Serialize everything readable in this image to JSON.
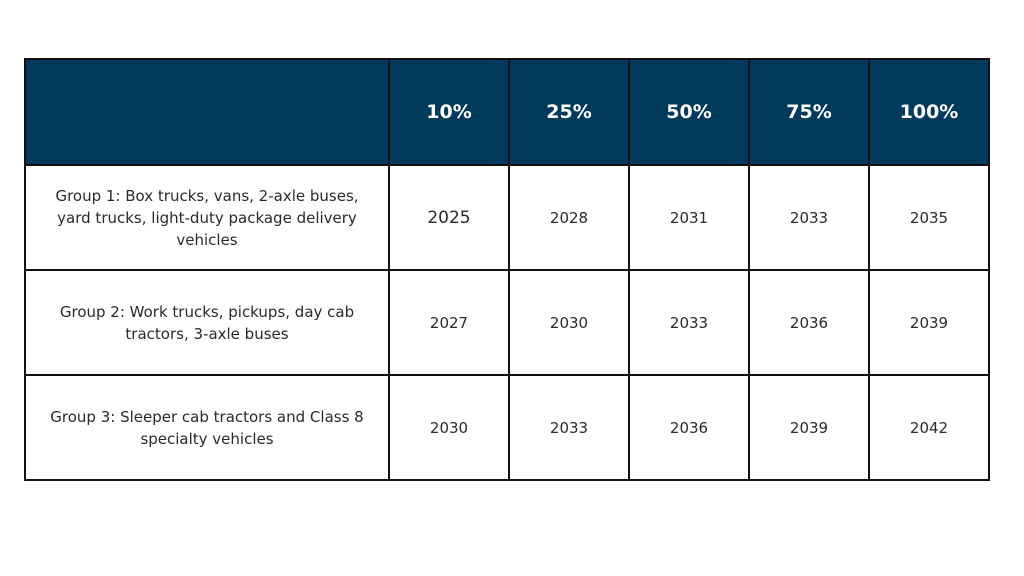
{
  "table": {
    "header": {
      "corner": "",
      "columns": [
        "10%",
        "25%",
        "50%",
        "75%",
        "100%"
      ]
    },
    "rows": [
      {
        "label": "Group 1: Box trucks, vans, 2-axle buses, yard trucks, light-duty package delivery vehicles",
        "values": [
          "2025",
          "2028",
          "2031",
          "2033",
          "2035"
        ]
      },
      {
        "label": "Group 2: Work trucks, pickups, day cab tractors, 3-axle buses",
        "values": [
          "2027",
          "2030",
          "2033",
          "2036",
          "2039"
        ]
      },
      {
        "label": "Group 3: Sleeper cab tractors and Class 8 specialty vehicles",
        "values": [
          "2030",
          "2033",
          "2036",
          "2039",
          "2042"
        ]
      }
    ]
  },
  "colors": {
    "header_bg": "#013a5c",
    "header_text": "#ffffff",
    "border": "#111111"
  }
}
